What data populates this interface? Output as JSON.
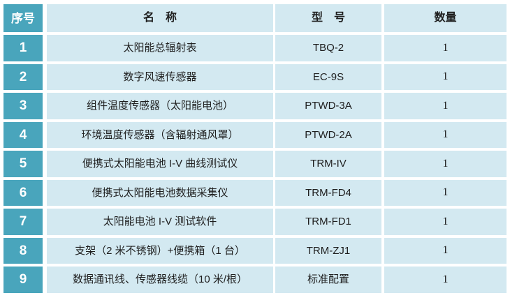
{
  "colors": {
    "index_column_bg": "#49a5bc",
    "cell_bg": "#d3e9f1",
    "gutter": "#ffffff",
    "body_text": "#1e1e1e",
    "index_text": "#ffffff"
  },
  "table": {
    "headers": {
      "no": "序号",
      "name": "名　称",
      "model": "型　号",
      "qty": "数量"
    },
    "rows": [
      {
        "no": "1",
        "name": "太阳能总辐射表",
        "model": "TBQ-2",
        "qty": "1"
      },
      {
        "no": "2",
        "name": "数字风速传感器",
        "model": "EC-9S",
        "qty": "1"
      },
      {
        "no": "3",
        "name": "组件温度传感器（太阳能电池）",
        "model": "PTWD-3A",
        "qty": "1"
      },
      {
        "no": "4",
        "name": "环境温度传感器（含辐射通风罩）",
        "model": "PTWD-2A",
        "qty": "1"
      },
      {
        "no": "5",
        "name": "便携式太阳能电池 I-V 曲线测试仪",
        "model": "TRM-IV",
        "qty": "1"
      },
      {
        "no": "6",
        "name": "便携式太阳能电池数据采集仪",
        "model": "TRM-FD4",
        "qty": "1"
      },
      {
        "no": "7",
        "name": "太阳能电池 I-V 测试软件",
        "model": "TRM-FD1",
        "qty": "1"
      },
      {
        "no": "8",
        "name": "支架（2 米不锈钢）+便携箱（1 台）",
        "model": "TRM-ZJ1",
        "qty": "1"
      },
      {
        "no": "9",
        "name": "数据通讯线、传感器线缆（10 米/根）",
        "model": "标准配置",
        "qty": "1"
      }
    ]
  }
}
